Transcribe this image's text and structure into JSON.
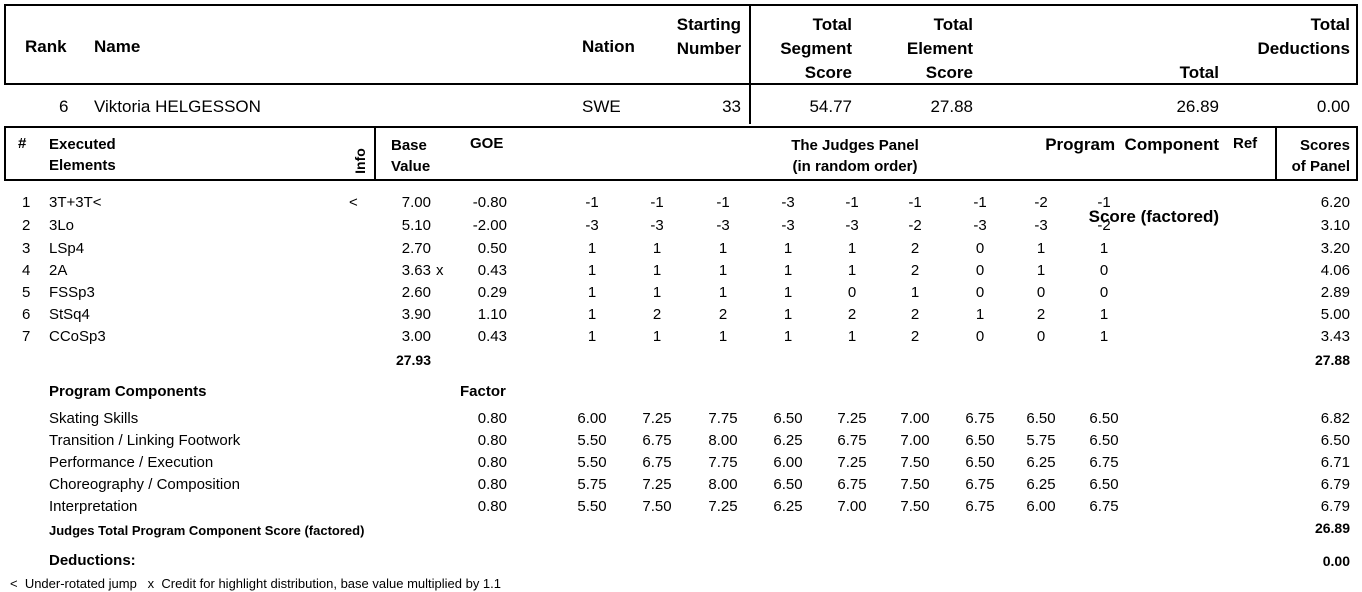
{
  "header": {
    "rank": "Rank",
    "name": "Name",
    "nation": "Nation",
    "starting": [
      "Starting",
      "Number"
    ],
    "tss": [
      "Total",
      "Segment",
      "Score"
    ],
    "tes": [
      "Total",
      "Element",
      "Score"
    ],
    "pcs": [
      "Total",
      "Program  Component",
      "Score (factored)"
    ],
    "ded": [
      "Total",
      "Deductions"
    ]
  },
  "skater": {
    "rank": "6",
    "name": "Viktoria HELGESSON",
    "nation": "SWE",
    "starting_number": "33",
    "tss": "54.77",
    "tes": "27.88",
    "pcs": "26.89",
    "deductions": "0.00"
  },
  "el_header": {
    "num": "#",
    "executed": [
      "Executed",
      "Elements"
    ],
    "info": "Info",
    "base": [
      "Base",
      "Value"
    ],
    "goe": "GOE",
    "panel": [
      "The Judges Panel",
      "(in random order)"
    ],
    "ref": "Ref",
    "scores": [
      "Scores",
      "of Panel"
    ]
  },
  "elements": [
    {
      "num": "1",
      "name": "3T+3T<",
      "info": "<",
      "base": "7.00",
      "bonus": "",
      "goe": "-0.80",
      "judges": [
        "-1",
        "-1",
        "-1",
        "-3",
        "-1",
        "-1",
        "-1",
        "-2",
        "-1"
      ],
      "score": "6.20"
    },
    {
      "num": "2",
      "name": "3Lo",
      "info": "",
      "base": "5.10",
      "bonus": "",
      "goe": "-2.00",
      "judges": [
        "-3",
        "-3",
        "-3",
        "-3",
        "-3",
        "-2",
        "-3",
        "-3",
        "-2"
      ],
      "score": "3.10"
    },
    {
      "num": "3",
      "name": "LSp4",
      "info": "",
      "base": "2.70",
      "bonus": "",
      "goe": "0.50",
      "judges": [
        "1",
        "1",
        "1",
        "1",
        "1",
        "2",
        "0",
        "1",
        "1"
      ],
      "score": "3.20"
    },
    {
      "num": "4",
      "name": "2A",
      "info": "",
      "base": "3.63",
      "bonus": "x",
      "goe": "0.43",
      "judges": [
        "1",
        "1",
        "1",
        "1",
        "1",
        "2",
        "0",
        "1",
        "0"
      ],
      "score": "4.06"
    },
    {
      "num": "5",
      "name": "FSSp3",
      "info": "",
      "base": "2.60",
      "bonus": "",
      "goe": "0.29",
      "judges": [
        "1",
        "1",
        "1",
        "1",
        "0",
        "1",
        "0",
        "0",
        "0"
      ],
      "score": "2.89"
    },
    {
      "num": "6",
      "name": "StSq4",
      "info": "",
      "base": "3.90",
      "bonus": "",
      "goe": "1.10",
      "judges": [
        "1",
        "2",
        "2",
        "1",
        "2",
        "2",
        "1",
        "2",
        "1"
      ],
      "score": "5.00"
    },
    {
      "num": "7",
      "name": "CCoSp3",
      "info": "",
      "base": "3.00",
      "bonus": "",
      "goe": "0.43",
      "judges": [
        "1",
        "1",
        "1",
        "1",
        "1",
        "2",
        "0",
        "0",
        "1"
      ],
      "score": "3.43"
    }
  ],
  "element_totals": {
    "base": "27.93",
    "score": "27.88"
  },
  "pc_header": {
    "title": "Program Components",
    "factor": "Factor"
  },
  "components": [
    {
      "name": "Skating Skills",
      "factor": "0.80",
      "judges": [
        "6.00",
        "7.25",
        "7.75",
        "6.50",
        "7.25",
        "7.00",
        "6.75",
        "6.50",
        "6.50"
      ],
      "score": "6.82"
    },
    {
      "name": "Transition / Linking Footwork",
      "factor": "0.80",
      "judges": [
        "5.50",
        "6.75",
        "8.00",
        "6.25",
        "6.75",
        "7.00",
        "6.50",
        "5.75",
        "6.50"
      ],
      "score": "6.50"
    },
    {
      "name": "Performance / Execution",
      "factor": "0.80",
      "judges": [
        "5.50",
        "6.75",
        "7.75",
        "6.00",
        "7.25",
        "7.50",
        "6.50",
        "6.25",
        "6.75"
      ],
      "score": "6.71"
    },
    {
      "name": "Choreography / Composition",
      "factor": "0.80",
      "judges": [
        "5.75",
        "7.25",
        "8.00",
        "6.50",
        "6.75",
        "7.50",
        "6.75",
        "6.25",
        "6.50"
      ],
      "score": "6.79"
    },
    {
      "name": "Interpretation",
      "factor": "0.80",
      "judges": [
        "5.50",
        "7.50",
        "7.25",
        "6.25",
        "7.00",
        "7.50",
        "6.75",
        "6.00",
        "6.75"
      ],
      "score": "6.79"
    }
  ],
  "pc_total": {
    "label": "Judges Total Program Component Score (factored)",
    "value": "26.89"
  },
  "deductions": {
    "label": "Deductions:",
    "value": "0.00"
  },
  "legend": "<  Under-rotated jump   x  Credit for highlight distribution, base value multiplied by 1.1"
}
